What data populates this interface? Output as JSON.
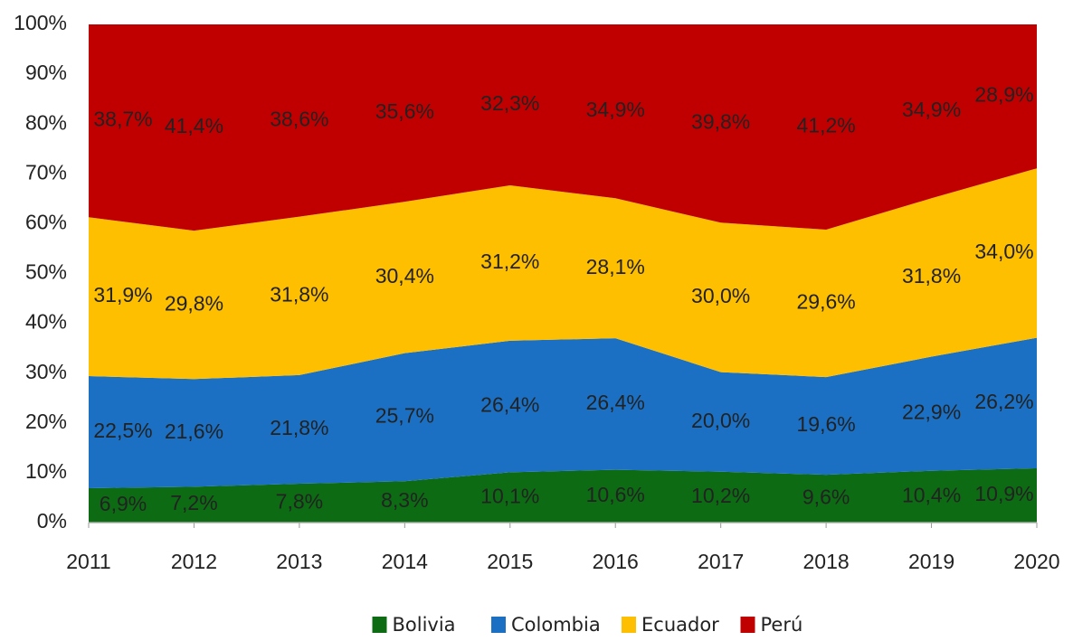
{
  "chart_data": {
    "type": "stacked_area",
    "x": [
      2011,
      2012,
      2013,
      2014,
      2015,
      2016,
      2017,
      2018,
      2019,
      2020
    ],
    "xlim": [
      2011,
      2020
    ],
    "xticks": [
      2011,
      2012,
      2013,
      2014,
      2015,
      2016,
      2017,
      2018,
      2019,
      2020
    ],
    "ylim": [
      0,
      100
    ],
    "yticks": [
      {
        "value": 0,
        "label": "0%"
      },
      {
        "value": 10,
        "label": "10%"
      },
      {
        "value": 20,
        "label": "20%"
      },
      {
        "value": 30,
        "label": "30%"
      },
      {
        "value": 40,
        "label": "40%"
      },
      {
        "value": 50,
        "label": "50%"
      },
      {
        "value": 60,
        "label": "60%"
      },
      {
        "value": 70,
        "label": "70%"
      },
      {
        "value": 80,
        "label": "80%"
      },
      {
        "value": 90,
        "label": "90%"
      },
      {
        "value": 100,
        "label": "100%"
      }
    ],
    "legend": "bottom",
    "series": [
      {
        "name": "Bolivia",
        "color": "#0d6b13",
        "label_color": "#ffffff",
        "values": [
          6.9,
          7.2,
          7.8,
          8.3,
          10.1,
          10.6,
          10.2,
          9.6,
          10.4,
          10.9
        ],
        "value_labels": [
          "6,9%",
          "7,2%",
          "7,8%",
          "8,3%",
          "10,1%",
          "10,6%",
          "10,2%",
          "9,6%",
          "10,4%",
          "10,9%"
        ]
      },
      {
        "name": "Colombia",
        "color": "#1b70c4",
        "label_color": "#ffffff",
        "values": [
          22.5,
          21.6,
          21.8,
          25.7,
          26.4,
          26.4,
          20.0,
          19.6,
          22.9,
          26.2
        ],
        "value_labels": [
          "22,5%",
          "21,6%",
          "21,8%",
          "25,7%",
          "26,4%",
          "26,4%",
          "20,0%",
          "19,6%",
          "22,9%",
          "26,2%"
        ]
      },
      {
        "name": "Ecuador",
        "color": "#fdbf00",
        "label_color": "#111111",
        "values": [
          31.9,
          29.8,
          31.8,
          30.4,
          31.2,
          28.1,
          30.0,
          29.6,
          31.8,
          34.0
        ],
        "value_labels": [
          "31,9%",
          "29,8%",
          "31,8%",
          "30,4%",
          "31,2%",
          "28,1%",
          "30,0%",
          "29,6%",
          "31,8%",
          "34,0%"
        ]
      },
      {
        "name": "Perú",
        "color": "#c00000",
        "label_color": "#ffffff",
        "values": [
          38.7,
          41.4,
          38.6,
          35.6,
          32.3,
          34.9,
          39.8,
          41.2,
          34.9,
          28.9
        ],
        "value_labels": [
          "38,7%",
          "41,4%",
          "38,6%",
          "35,6%",
          "32,3%",
          "34,9%",
          "39,8%",
          "41,2%",
          "34,9%",
          "28,9%"
        ]
      }
    ]
  }
}
